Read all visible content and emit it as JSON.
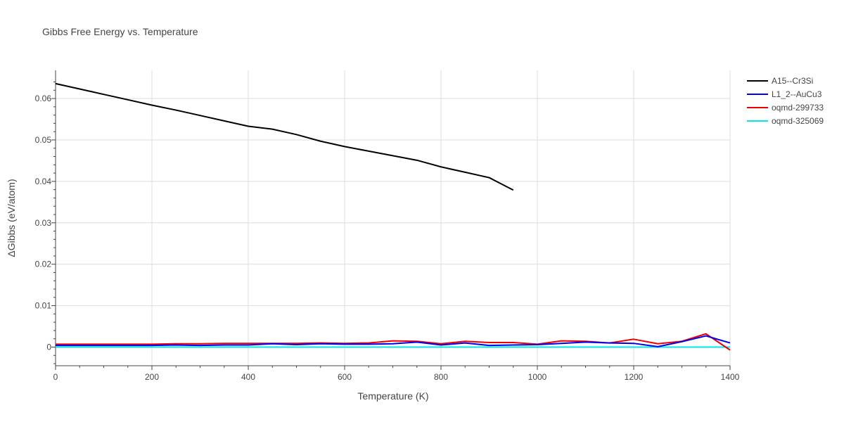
{
  "chart_data": {
    "type": "line",
    "title": "Gibbs Free Energy vs. Temperature",
    "xlabel": "Temperature (K)",
    "ylabel": "ΔGibbs (eV/atom)",
    "xlim": [
      0,
      1400
    ],
    "ylim": [
      -0.0045,
      0.0668
    ],
    "xticks": [
      0,
      200,
      400,
      600,
      800,
      1000,
      1200,
      1400
    ],
    "xtick_labels": [
      "0",
      "200",
      "400",
      "600",
      "800",
      "1000",
      "1200",
      "1400"
    ],
    "yticks": [
      0,
      0.01,
      0.02,
      0.03,
      0.04,
      0.05,
      0.06
    ],
    "ytick_labels": [
      "0",
      "0.01",
      "0.02",
      "0.03",
      "0.04",
      "0.05",
      "0.06"
    ],
    "grid": true,
    "legend_position": "top-right",
    "series": [
      {
        "name": "A15--Cr3Si",
        "color": "#000000",
        "x": [
          0,
          50,
          100,
          150,
          200,
          250,
          300,
          350,
          400,
          450,
          500,
          550,
          600,
          650,
          700,
          750,
          800,
          850,
          900,
          950
        ],
        "y": [
          0.0636,
          0.0623,
          0.061,
          0.0597,
          0.0584,
          0.0572,
          0.0559,
          0.0546,
          0.0533,
          0.0526,
          0.0513,
          0.0497,
          0.0484,
          0.0473,
          0.0462,
          0.0451,
          0.0435,
          0.0422,
          0.0409,
          0.0379
        ]
      },
      {
        "name": "L1_2--AuCu3",
        "color": "#0000ee",
        "x": [
          0,
          50,
          100,
          150,
          200,
          250,
          300,
          350,
          400,
          450,
          500,
          550,
          600,
          650,
          700,
          750,
          800,
          850,
          900,
          950,
          1000,
          1050,
          1100,
          1150,
          1200,
          1250,
          1300,
          1350,
          1400
        ],
        "y": [
          0.0004,
          0.0004,
          0.0004,
          0.0004,
          0.0004,
          0.0005,
          0.0004,
          0.0005,
          0.0005,
          0.0008,
          0.0006,
          0.0008,
          0.0007,
          0.0007,
          0.0008,
          0.0012,
          0.0005,
          0.001,
          0.0004,
          0.0005,
          0.0006,
          0.0009,
          0.0012,
          0.001,
          0.0009,
          0.0001,
          0.0013,
          0.0027,
          0.001
        ]
      },
      {
        "name": "oqmd-299733",
        "color": "#ee0000",
        "x": [
          0,
          50,
          100,
          150,
          200,
          250,
          300,
          350,
          400,
          450,
          500,
          550,
          600,
          650,
          700,
          750,
          800,
          850,
          900,
          950,
          1000,
          1050,
          1100,
          1150,
          1200,
          1250,
          1300,
          1350,
          1400
        ],
        "y": [
          0.0007,
          0.0007,
          0.0007,
          0.0007,
          0.0007,
          0.0008,
          0.0008,
          0.0009,
          0.0009,
          0.0009,
          0.0009,
          0.001,
          0.0009,
          0.001,
          0.0015,
          0.0014,
          0.0008,
          0.0014,
          0.0011,
          0.0011,
          0.0007,
          0.0015,
          0.0014,
          0.001,
          0.0019,
          0.0008,
          0.0014,
          0.0032,
          -0.0007
        ]
      },
      {
        "name": "oqmd-325069",
        "color": "#00e5ee",
        "x": [
          0,
          200,
          400,
          600,
          800,
          1000,
          1200,
          1400
        ],
        "y": [
          0,
          0,
          0,
          0,
          0,
          0,
          0,
          0
        ]
      }
    ]
  }
}
